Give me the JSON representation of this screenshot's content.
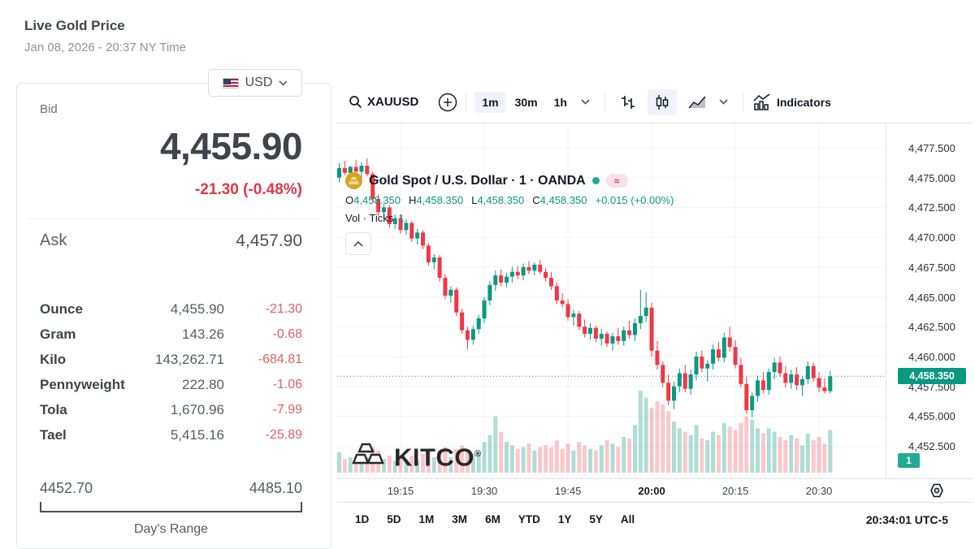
{
  "page": {
    "title": "Live Gold Price",
    "datetime": "Jan 08, 2026 - 20:37 NY Time"
  },
  "quote_panel": {
    "currency": {
      "label": "USD",
      "flag": "us-flag"
    },
    "bid_label": "Bid",
    "bid": "4,455.90",
    "change": "-21.30 (-0.48%)",
    "ask_label": "Ask",
    "ask": "4,457.90",
    "units": [
      {
        "label": "Ounce",
        "value": "4,455.90",
        "change": "-21.30"
      },
      {
        "label": "Gram",
        "value": "143.26",
        "change": "-0.68"
      },
      {
        "label": "Kilo",
        "value": "143,262.71",
        "change": "-684.81"
      },
      {
        "label": "Pennyweight",
        "value": "222.80",
        "change": "-1.06"
      },
      {
        "label": "Tola",
        "value": "1,670.96",
        "change": "-7.99"
      },
      {
        "label": "Tael",
        "value": "5,415.16",
        "change": "-25.89"
      }
    ],
    "range": {
      "low": "4452.70",
      "high": "4485.10",
      "label": "Day's Range"
    }
  },
  "chart": {
    "toolbar": {
      "symbol": "XAUUSD",
      "timeframes": [
        "1m",
        "30m",
        "1h"
      ],
      "active_timeframe": "1m",
      "indicators_label": "Indicators"
    },
    "legend": {
      "title": "Gold Spot / U.S. Dollar · 1 · OANDA",
      "status_symbol": "≈",
      "ohlc": [
        {
          "k": "O",
          "v": "4,458.350"
        },
        {
          "k": "H",
          "v": "4,458.350"
        },
        {
          "k": "L",
          "v": "4,458.350"
        },
        {
          "k": "C",
          "v": "4,458.350"
        }
      ],
      "ohlc_change": "+0.015 (+0.00%)",
      "vol_label": "Vol · Ticks",
      "vol_value": "1"
    },
    "watermark": "KITCO",
    "watermark_reg": "®",
    "price_tag": "4,458.350",
    "vol_badge": "1",
    "ranges": [
      "1D",
      "5D",
      "1M",
      "3M",
      "6M",
      "YTD",
      "1Y",
      "5Y",
      "All"
    ],
    "clock": "20:34:01 UTC-5",
    "colors": {
      "up": "#089981",
      "down": "#f23645",
      "vol_up": "rgba(8,153,129,0.33)",
      "vol_down": "rgba(242,54,69,0.28)",
      "grid": "#f0f3fa",
      "tag_bg": "#089981",
      "accent_red": "#e23744"
    }
  },
  "chart_data": {
    "type": "candlestick+volume",
    "symbol": "XAUUSD 1m",
    "start_time": "19:04",
    "interval_min": 1,
    "y_domain": [
      4449.79,
      4479.54
    ],
    "last_price": 4458.35,
    "y_ticks": [
      {
        "v": 4477.5,
        "label": "4,477.500"
      },
      {
        "v": 4475.0,
        "label": "4,475.000"
      },
      {
        "v": 4472.5,
        "label": "4,472.500"
      },
      {
        "v": 4470.0,
        "label": "4,470.000"
      },
      {
        "v": 4467.5,
        "label": "4,467.500"
      },
      {
        "v": 4465.0,
        "label": "4,465.000"
      },
      {
        "v": 4462.5,
        "label": "4,462.500"
      },
      {
        "v": 4460.0,
        "label": "4,460.000"
      },
      {
        "v": 4457.5,
        "label": "4,457.500"
      },
      {
        "v": 4455.0,
        "label": "4,455.000"
      },
      {
        "v": 4452.5,
        "label": "4,452.500"
      }
    ],
    "x_ticks": [
      {
        "i": 11,
        "label": "19:15",
        "bold": false
      },
      {
        "i": 26,
        "label": "19:30",
        "bold": false
      },
      {
        "i": 41,
        "label": "19:45",
        "bold": false
      },
      {
        "i": 56,
        "label": "20:00",
        "bold": true
      },
      {
        "i": 71,
        "label": "20:15",
        "bold": false
      },
      {
        "i": 86,
        "label": "20:30",
        "bold": false
      }
    ],
    "candles": [
      [
        4475.0,
        4476.2,
        4474.6,
        4475.8,
        1.2
      ],
      [
        4475.8,
        4476.4,
        4475.2,
        4475.4,
        0.8
      ],
      [
        4475.4,
        4476.0,
        4474.8,
        4475.9,
        0.9
      ],
      [
        4475.9,
        4476.5,
        4475.3,
        4475.5,
        0.7
      ],
      [
        4475.5,
        4476.3,
        4475.0,
        4476.0,
        1.0
      ],
      [
        4476.0,
        4476.6,
        4475.1,
        4475.3,
        0.9
      ],
      [
        4475.3,
        4475.5,
        4472.9,
        4473.2,
        1.5
      ],
      [
        4473.2,
        4473.6,
        4471.8,
        4472.1,
        1.3
      ],
      [
        4472.1,
        4472.8,
        4471.5,
        4472.5,
        0.8
      ],
      [
        4472.5,
        4472.7,
        4470.8,
        4471.1,
        1.0
      ],
      [
        4471.1,
        4471.9,
        4470.7,
        4471.6,
        0.7
      ],
      [
        4471.6,
        4471.8,
        4470.3,
        4470.6,
        0.9
      ],
      [
        4470.6,
        4471.5,
        4470.2,
        4471.2,
        0.8
      ],
      [
        4471.2,
        4471.4,
        4469.6,
        4469.9,
        1.0
      ],
      [
        4469.9,
        4470.7,
        4469.4,
        4470.4,
        0.7
      ],
      [
        4470.4,
        4470.6,
        4469.0,
        4469.3,
        1.1
      ],
      [
        4469.3,
        4469.5,
        4467.6,
        4467.9,
        1.4
      ],
      [
        4467.9,
        4468.6,
        4467.3,
        4468.3,
        0.9
      ],
      [
        4468.3,
        4468.5,
        4466.3,
        4466.6,
        1.3
      ],
      [
        4466.6,
        4466.9,
        4464.8,
        4465.1,
        1.5
      ],
      [
        4465.1,
        4465.9,
        4464.5,
        4465.6,
        0.9
      ],
      [
        4465.6,
        4465.8,
        4463.4,
        4463.7,
        1.4
      ],
      [
        4463.7,
        4464.0,
        4461.9,
        4462.2,
        1.6
      ],
      [
        4462.2,
        4462.5,
        4460.6,
        4461.4,
        1.3
      ],
      [
        4461.4,
        4462.6,
        4461.0,
        4462.3,
        1.1
      ],
      [
        4462.3,
        4463.5,
        4461.9,
        4463.2,
        1.2
      ],
      [
        4463.2,
        4465.0,
        4462.8,
        4464.7,
        1.8
      ],
      [
        4464.7,
        4466.3,
        4464.3,
        4466.0,
        2.2
      ],
      [
        4466.0,
        4467.2,
        4465.5,
        4466.8,
        3.3
      ],
      [
        4466.8,
        4467.3,
        4465.9,
        4466.2,
        2.4
      ],
      [
        4466.2,
        4467.0,
        4465.8,
        4466.7,
        1.8
      ],
      [
        4466.7,
        4467.5,
        4466.2,
        4467.1,
        1.6
      ],
      [
        4467.1,
        4467.6,
        4466.5,
        4466.8,
        1.4
      ],
      [
        4466.8,
        4467.8,
        4466.4,
        4467.5,
        1.5
      ],
      [
        4467.5,
        4468.0,
        4466.9,
        4467.2,
        1.7
      ],
      [
        4467.2,
        4467.9,
        4466.8,
        4467.7,
        1.3
      ],
      [
        4467.7,
        4468.1,
        4466.9,
        4467.1,
        1.5
      ],
      [
        4467.1,
        4467.4,
        4466.3,
        4466.6,
        1.6
      ],
      [
        4466.6,
        4467.1,
        4465.6,
        4465.9,
        1.5
      ],
      [
        4465.9,
        4466.2,
        4464.4,
        4464.7,
        1.9
      ],
      [
        4464.7,
        4465.3,
        4464.1,
        4464.4,
        1.4
      ],
      [
        4464.4,
        4464.8,
        4463.0,
        4463.3,
        1.7
      ],
      [
        4463.3,
        4463.9,
        4462.6,
        4463.6,
        1.3
      ],
      [
        4463.6,
        4463.8,
        4462.2,
        4462.5,
        1.8
      ],
      [
        4462.5,
        4463.1,
        4461.6,
        4461.9,
        1.6
      ],
      [
        4461.9,
        4462.8,
        4461.4,
        4462.4,
        1.4
      ],
      [
        4462.4,
        4462.6,
        4461.2,
        4461.5,
        1.3
      ],
      [
        4461.5,
        4462.3,
        4460.9,
        4461.9,
        1.6
      ],
      [
        4461.9,
        4462.1,
        4460.8,
        4461.1,
        1.9
      ],
      [
        4461.1,
        4462.0,
        4460.5,
        4461.7,
        1.7
      ],
      [
        4461.7,
        4462.4,
        4461.0,
        4461.3,
        1.5
      ],
      [
        4461.3,
        4462.5,
        4460.9,
        4462.2,
        2.1
      ],
      [
        4462.2,
        4463.0,
        4461.5,
        4461.8,
        2.0
      ],
      [
        4461.8,
        4463.2,
        4461.3,
        4462.8,
        2.8
      ],
      [
        4462.8,
        4465.6,
        4462.3,
        4463.4,
        4.8
      ],
      [
        4463.4,
        4465.4,
        4462.9,
        4464.1,
        4.4
      ],
      [
        4464.1,
        4464.5,
        4460.0,
        4460.5,
        3.8
      ],
      [
        4460.5,
        4461.3,
        4458.9,
        4459.3,
        4.2
      ],
      [
        4459.3,
        4459.6,
        4457.4,
        4457.8,
        4.0
      ],
      [
        4457.8,
        4458.5,
        4455.9,
        4456.3,
        3.6
      ],
      [
        4456.3,
        4457.9,
        4455.6,
        4457.5,
        3.0
      ],
      [
        4457.5,
        4459.0,
        4457.0,
        4458.6,
        2.6
      ],
      [
        4458.6,
        4459.3,
        4457.0,
        4457.3,
        2.4
      ],
      [
        4457.3,
        4458.9,
        4456.8,
        4458.5,
        2.2
      ],
      [
        4458.5,
        4460.4,
        4458.0,
        4460.0,
        2.8
      ],
      [
        4460.0,
        4460.5,
        4458.7,
        4459.0,
        2.0
      ],
      [
        4459.0,
        4459.7,
        4457.9,
        4459.4,
        1.9
      ],
      [
        4459.4,
        4461.0,
        4458.9,
        4460.6,
        2.4
      ],
      [
        4460.6,
        4461.2,
        4459.6,
        4459.9,
        2.2
      ],
      [
        4459.9,
        4462.0,
        4459.5,
        4461.6,
        2.9
      ],
      [
        4461.6,
        4462.5,
        4460.4,
        4460.8,
        2.7
      ],
      [
        4460.8,
        4461.4,
        4459.0,
        4459.3,
        2.5
      ],
      [
        4459.3,
        4459.9,
        4457.4,
        4457.7,
        2.9
      ],
      [
        4457.7,
        4458.3,
        4455.2,
        4455.5,
        3.3
      ],
      [
        4455.5,
        4457.0,
        4454.9,
        4456.7,
        3.1
      ],
      [
        4456.7,
        4458.4,
        4456.2,
        4458.0,
        2.6
      ],
      [
        4458.0,
        4458.7,
        4456.9,
        4457.2,
        2.3
      ],
      [
        4457.2,
        4459.0,
        4456.8,
        4458.7,
        2.6
      ],
      [
        4458.7,
        4459.9,
        4458.1,
        4459.5,
        2.4
      ],
      [
        4459.5,
        4460.0,
        4458.3,
        4458.6,
        2.1
      ],
      [
        4458.6,
        4459.2,
        4457.4,
        4457.8,
        1.9
      ],
      [
        4457.8,
        4458.9,
        4457.3,
        4458.5,
        2.2
      ],
      [
        4458.5,
        4459.1,
        4457.2,
        4457.6,
        2.0
      ],
      [
        4457.6,
        4458.4,
        4456.7,
        4458.1,
        1.6
      ],
      [
        4458.1,
        4459.6,
        4457.7,
        4459.2,
        2.3
      ],
      [
        4459.2,
        4459.5,
        4457.9,
        4458.2,
        1.9
      ],
      [
        4458.2,
        4458.7,
        4457.0,
        4457.4,
        2.1
      ],
      [
        4457.4,
        4458.2,
        4456.9,
        4457.1,
        1.7
      ],
      [
        4457.1,
        4458.8,
        4456.9,
        4458.35,
        2.5
      ]
    ]
  }
}
